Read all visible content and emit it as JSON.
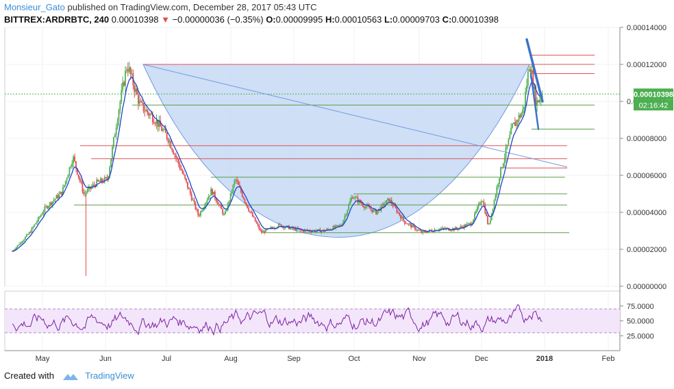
{
  "header": {
    "username": "Monsieur_Gato",
    "published_text": "published on TradingView.com, December 28, 2017 05:43 UTC",
    "symbol": "BITTREX:ARDRBTC, 240",
    "last": "0.00010398",
    "change": "−0.00000036 (−0.35%)",
    "o_label": "O:",
    "o": "0.00009995",
    "h_label": "H:",
    "h": "0.00010563",
    "l_label": "L:",
    "l": "0.00009703",
    "c_label": "C:",
    "c": "0.00010398"
  },
  "price_badge": {
    "price": "0.00010398",
    "countdown": "02:16:42",
    "color": "#4caf50"
  },
  "footer": {
    "created_with": "Created with",
    "brand": "TradingView"
  },
  "colors": {
    "candle_up": "#4caf50",
    "candle_down": "#e04b4b",
    "ma": "#1e40c8",
    "rsi": "#7b1fa2",
    "cup_fill": "#c9dcf5",
    "trendline": "#6f9ae0"
  },
  "chart_data": {
    "type": "candlestick",
    "title": "BITTREX:ARDRBTC, 240",
    "ylim": [
      0.0,
      0.00014
    ],
    "y_ticks": [
      "0.00014000",
      "0.00012000",
      "0.00010000",
      "0.00008000",
      "0.00006000",
      "0.00004000",
      "0.00002000",
      "0.00000000"
    ],
    "x_ticks": [
      "May",
      "Jun",
      "Jul",
      "Aug",
      "Sep",
      "Oct",
      "Nov",
      "Dec",
      "2018",
      "Feb"
    ],
    "close_path": [
      [
        "Apr 27",
        1.9e-05
      ],
      [
        "May 5",
        2.9e-05
      ],
      [
        "May 12",
        4.2e-05
      ],
      [
        "May 20",
        5.1e-05
      ],
      [
        "May 25",
        7e-05
      ],
      [
        "May 30",
        5e-05
      ],
      [
        "Jun 5",
        5.6e-05
      ],
      [
        "Jun 10",
        5.8e-05
      ],
      [
        "Jun 15",
        9.5e-05
      ],
      [
        "Jun 19",
        0.00012
      ],
      [
        "Jun 25",
        9.8e-05
      ],
      [
        "Jul 2",
        9e-05
      ],
      [
        "Jul 8",
        8e-05
      ],
      [
        "Jul 15",
        6e-05
      ],
      [
        "Jul 22",
        3.8e-05
      ],
      [
        "Jul 28",
        5.2e-05
      ],
      [
        "Aug 3",
        3.8e-05
      ],
      [
        "Aug 8",
        5.8e-05
      ],
      [
        "Aug 14",
        4.2e-05
      ],
      [
        "Aug 20",
        2.9e-05
      ],
      [
        "Aug 28",
        3.3e-05
      ],
      [
        "Sep 8",
        3e-05
      ],
      [
        "Sep 18",
        3e-05
      ],
      [
        "Sep 26",
        3.3e-05
      ],
      [
        "Oct 1",
        4.9e-05
      ],
      [
        "Oct 6",
        4.4e-05
      ],
      [
        "Oct 12",
        4e-05
      ],
      [
        "Oct 18",
        4.7e-05
      ],
      [
        "Oct 25",
        3.5e-05
      ],
      [
        "Nov 2",
        2.9e-05
      ],
      [
        "Nov 10",
        3.1e-05
      ],
      [
        "Nov 18",
        3.1e-05
      ],
      [
        "Nov 25",
        3.4e-05
      ],
      [
        "Nov 30",
        4.8e-05
      ],
      [
        "Dec 3",
        3.2e-05
      ],
      [
        "Dec 8",
        6e-05
      ],
      [
        "Dec 14",
        8.6e-05
      ],
      [
        "Dec 19",
        9.5e-05
      ],
      [
        "Dec 22",
        0.000122
      ],
      [
        "Dec 25",
        9.9e-05
      ],
      [
        "Dec 28",
        0.000104
      ]
    ],
    "horizontal_levels": [
      {
        "price": 0.000125,
        "color": "red"
      },
      {
        "price": 0.00012,
        "color": "red"
      },
      {
        "price": 0.000115,
        "color": "red"
      },
      {
        "price": 9.8e-05,
        "color": "green"
      },
      {
        "price": 8.5e-05,
        "color": "green"
      },
      {
        "price": 7.6e-05,
        "color": "red"
      },
      {
        "price": 6.9e-05,
        "color": "red"
      },
      {
        "price": 6.4e-05,
        "color": "red"
      },
      {
        "price": 5.9e-05,
        "color": "green"
      },
      {
        "price": 5e-05,
        "color": "green"
      },
      {
        "price": 4.4e-05,
        "color": "green"
      },
      {
        "price": 2.9e-05,
        "color": "green"
      }
    ],
    "rsi": {
      "y_ticks": [
        "75.0000",
        "50.0000",
        "25.0000"
      ],
      "band": [
        30,
        70
      ],
      "last": 49
    },
    "grid": true
  }
}
